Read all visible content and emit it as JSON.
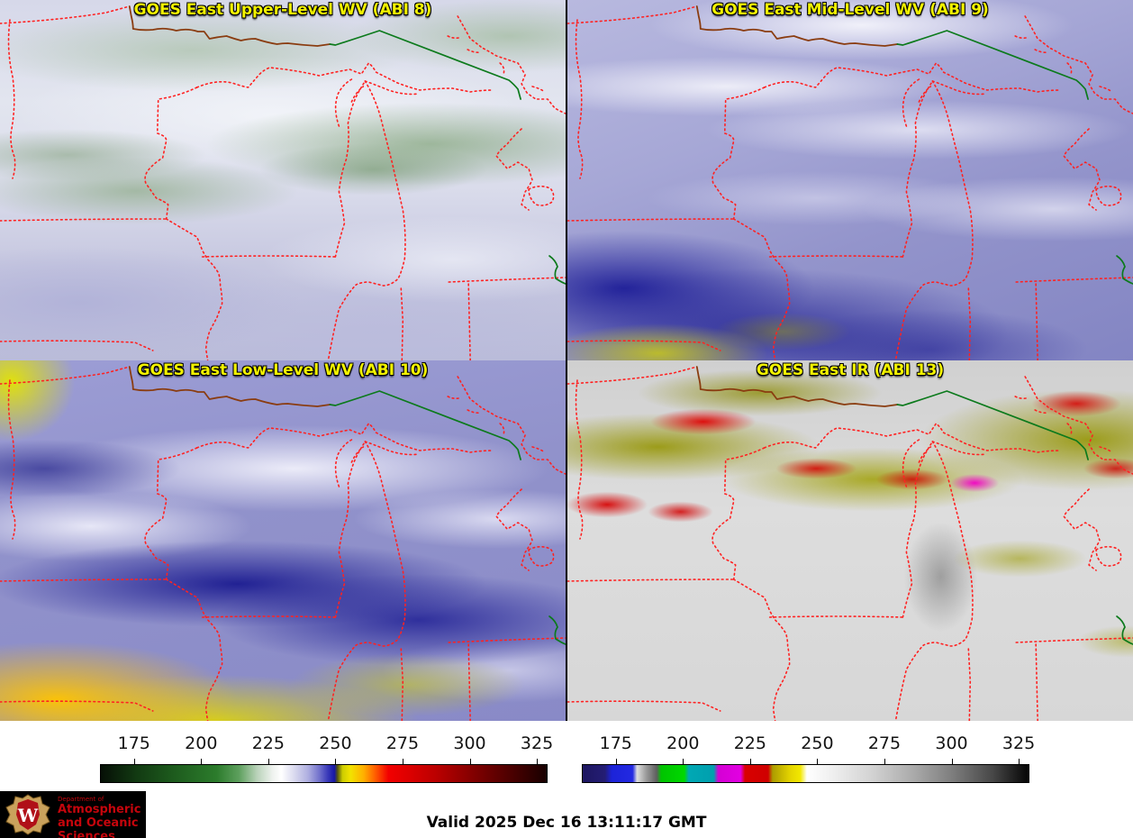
{
  "panels": [
    {
      "title": "GOES East Upper-Level WV (ABI 8)"
    },
    {
      "title": "GOES East Mid-Level WV (ABI 9)"
    },
    {
      "title": "GOES East Low-Level WV (ABI 10)"
    },
    {
      "title": "GOES East IR (ABI 13)"
    }
  ],
  "overlay_colors": {
    "title_yellow": "#f2f200",
    "state_border_red": "#ff2222",
    "shoreline_brown": "#8a3c10",
    "border_green": "#0c7a1c"
  },
  "colorbars": [
    {
      "name": "water-vapor-temperature-scale",
      "ticks": [
        "175",
        "200",
        "225",
        "250",
        "275",
        "300",
        "325"
      ],
      "tick_start_pct": 7.6,
      "tick_step_pct": 15.0,
      "gradient": "linear-gradient(to right,#060f06 0%,#123a12 8%,#1d5a1d 16%,#2c7c2c 26%,#5ea05e 31%,#b9d2b9 35%,#eef2ee 38.5%,#ffffff 40.5%,#d8d8ee 43.5%,#aeaee0 46.5%,#7272cc 49%,#3737b8 51%,#1717a4 52.4%,#57570e 53.1%,#cdcd00 54.2%,#f2e300 56%,#ffae00 59%,#ff5f00 61.5%,#f20000 64.5%,#dd0000 69%,#bc0000 75%,#930000 81%,#6b0000 87%,#450000 93%,#250000 98%,#160000 100%)"
    },
    {
      "name": "ir-temperature-scale",
      "ticks": [
        "175",
        "200",
        "225",
        "250",
        "275",
        "300",
        "325"
      ],
      "tick_start_pct": 7.6,
      "tick_step_pct": 15.0,
      "gradient": "linear-gradient(to right,#1d1660 0%,#241d74 5%,#1c23d8 6.5%,#2329e2 11.2%,#dedede 12.2%,#9c9c9c 14.2%,#5e5e5e 16.6%,#00c400 17.6%,#00d800 22.8%,#00a8b4 23.8%,#009fae 29.4%,#d400d4 30.4%,#e200e2 35.4%,#d90000 36.4%,#cf0000 41.6%,#ac9c00 42.6%,#e4d400 46.5%,#f2e800 48.8%,#ffffff 50.3%,#efefef 56%,#d2d2d2 65%,#ababab 74%,#7d7d7d 83%,#474747 92%,#050505 100%)"
    }
  ],
  "footer": {
    "valid_text": "Valid 2025 Dec 16 13:11:17 GMT"
  },
  "logo": {
    "crest_letter": "W",
    "dept_line": "Department of",
    "name_line1": "Atmospheric",
    "name_line2": "and Oceanic Sciences",
    "brand_red": "#c5050c"
  }
}
